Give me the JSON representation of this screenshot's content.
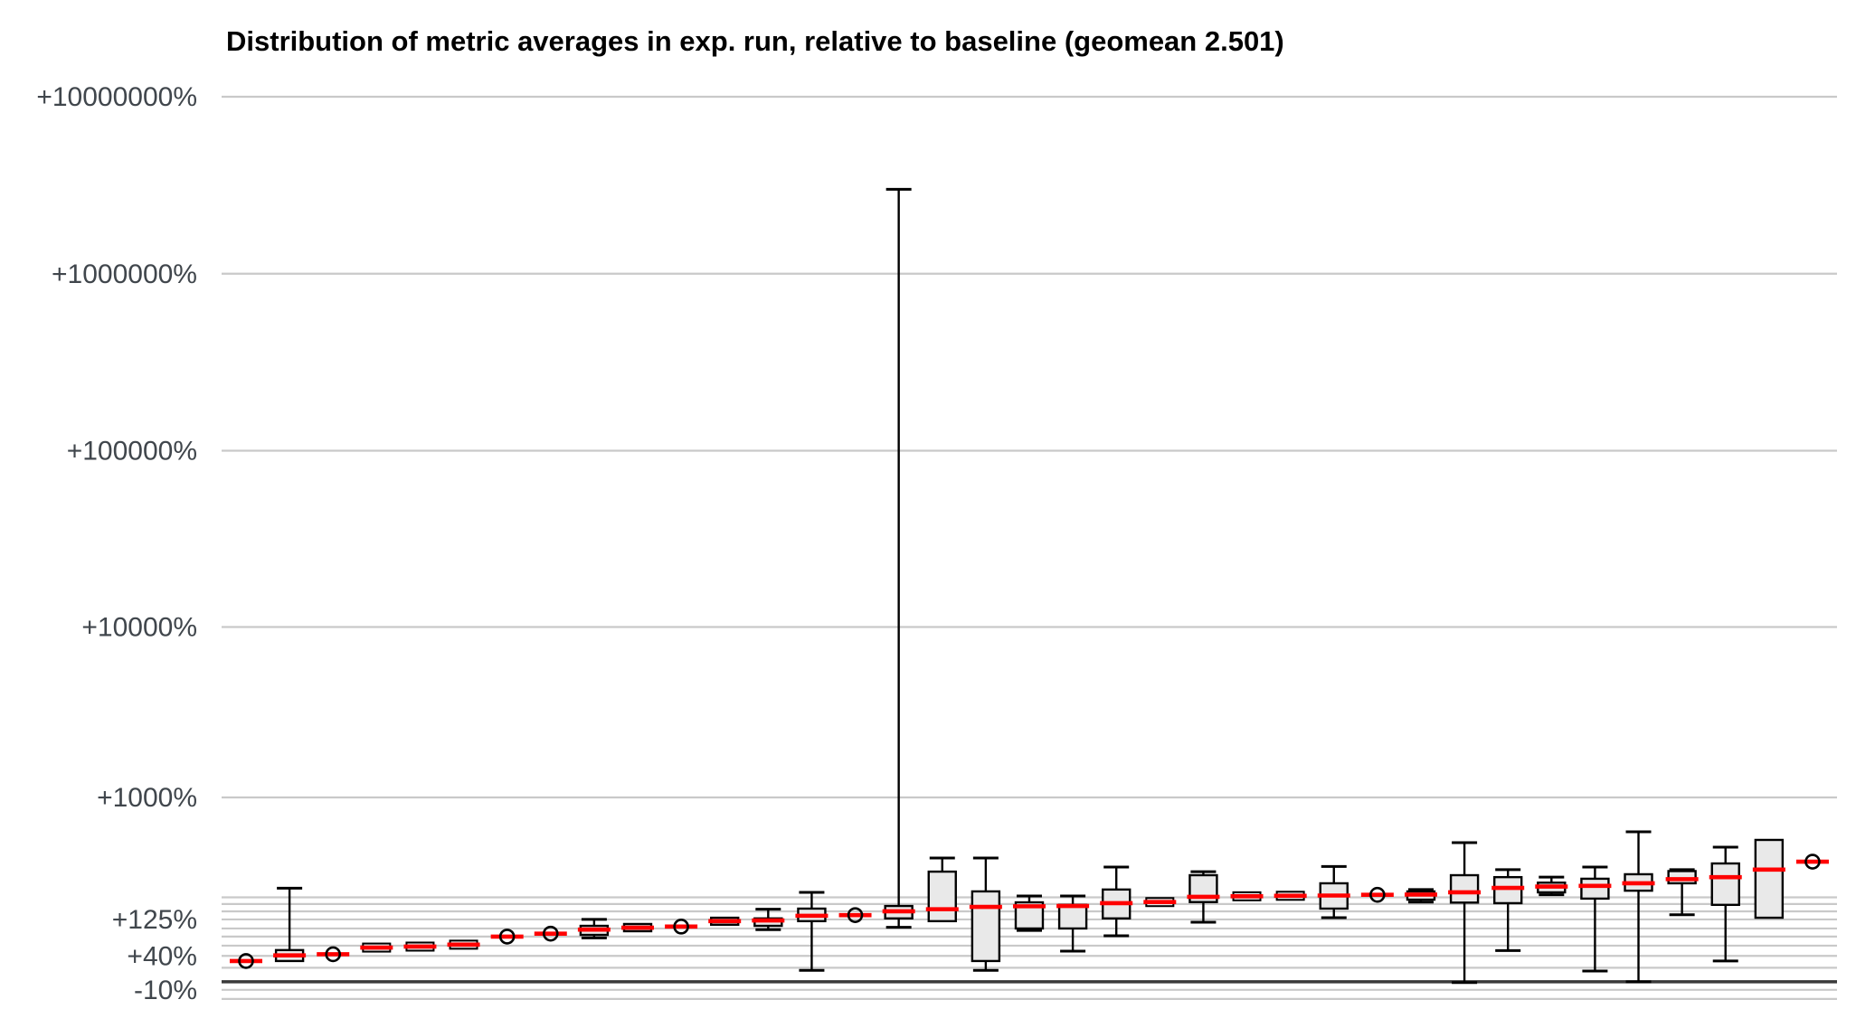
{
  "title": "Distribution of metric averages in exp. run, relative to baseline (geomean 2.501)",
  "colors": {
    "median_red": "#ff0000",
    "box_fill": "#e9e9e9",
    "box_stroke": "#000000",
    "gridline": "#c9c9c9",
    "baseline_line": "#3a3a3a",
    "tick_label": "#40464c",
    "title": "#000000"
  },
  "chart_data": {
    "type": "boxplot",
    "title": "Distribution of metric averages in exp. run, relative to baseline (geomean 2.501)",
    "geomean": 2.501,
    "xlabel": "",
    "ylabel": "",
    "x_tick_labels": [],
    "y_scale": "logarithmic in ratio (1 + pct/100)",
    "y_axis": {
      "tick_labels": [
        "+10000000%",
        "+1000000%",
        "+100000%",
        "+10000%",
        "+1000%",
        "+125%",
        "+40%",
        "-10%"
      ],
      "tick_values_pct": [
        10000000,
        1000000,
        100000,
        10000,
        1000,
        125,
        40,
        -10
      ],
      "gridlines_minor_pct": [
        10000000,
        1000000,
        100000,
        10000,
        1000,
        200,
        175,
        150,
        125,
        100,
        80,
        60,
        40,
        20,
        -10,
        -20
      ],
      "baseline_pct": 0,
      "grid": "on",
      "range_pct": [
        -20,
        10000000
      ]
    },
    "n_boxes": 37,
    "boxes": [
      {
        "kind": "circle",
        "median_pct": 31
      },
      {
        "kind": "box",
        "median_pct": 41,
        "q1_pct": 31,
        "q3_pct": 51,
        "whisker_low_pct": 31,
        "whisker_high_pct": 238
      },
      {
        "kind": "circle",
        "median_pct": 43
      },
      {
        "kind": "dash",
        "median_pct": 56
      },
      {
        "kind": "dash",
        "median_pct": 58
      },
      {
        "kind": "dash",
        "median_pct": 62
      },
      {
        "kind": "circle",
        "median_pct": 80
      },
      {
        "kind": "circle",
        "median_pct": 87
      },
      {
        "kind": "box",
        "median_pct": 97,
        "q1_pct": 84,
        "q3_pct": 107,
        "whisker_low_pct": 77,
        "whisker_high_pct": 125
      },
      {
        "kind": "box",
        "median_pct": 102,
        "q1_pct": 93,
        "q3_pct": 112,
        "whisker_low_pct": 93,
        "whisker_high_pct": 112
      },
      {
        "kind": "circle",
        "median_pct": 105
      },
      {
        "kind": "box",
        "median_pct": 120,
        "q1_pct": 110,
        "q3_pct": 130,
        "whisker_low_pct": 110,
        "whisker_high_pct": 130
      },
      {
        "kind": "box",
        "median_pct": 122,
        "q1_pct": 107,
        "q3_pct": 128,
        "whisker_low_pct": 97,
        "whisker_high_pct": 157
      },
      {
        "kind": "box",
        "median_pct": 136,
        "q1_pct": 120,
        "q3_pct": 159,
        "whisker_low_pct": 16,
        "whisker_high_pct": 220
      },
      {
        "kind": "circle",
        "median_pct": 138
      },
      {
        "kind": "box",
        "median_pct": 150,
        "q1_pct": 128,
        "q3_pct": 168,
        "whisker_low_pct": 103,
        "whisker_high_pct": 3000000
      },
      {
        "kind": "box",
        "median_pct": 157,
        "q1_pct": 120,
        "q3_pct": 319,
        "whisker_low_pct": 120,
        "whisker_high_pct": 400
      },
      {
        "kind": "box",
        "median_pct": 165,
        "q1_pct": 31,
        "q3_pct": 224,
        "whisker_low_pct": 16,
        "whisker_high_pct": 400
      },
      {
        "kind": "box",
        "median_pct": 167,
        "q1_pct": 100,
        "q3_pct": 181,
        "whisker_low_pct": 95,
        "whisker_high_pct": 205
      },
      {
        "kind": "box",
        "median_pct": 168,
        "q1_pct": 100,
        "q3_pct": 172,
        "whisker_low_pct": 49,
        "whisker_high_pct": 205
      },
      {
        "kind": "box",
        "median_pct": 178,
        "q1_pct": 128,
        "q3_pct": 232,
        "whisker_low_pct": 82,
        "whisker_high_pct": 345
      },
      {
        "kind": "dash",
        "median_pct": 182
      },
      {
        "kind": "box",
        "median_pct": 202,
        "q1_pct": 182,
        "q3_pct": 300,
        "whisker_low_pct": 117,
        "whisker_high_pct": 319
      },
      {
        "kind": "dash",
        "median_pct": 204
      },
      {
        "kind": "dash",
        "median_pct": 206
      },
      {
        "kind": "box",
        "median_pct": 207,
        "q1_pct": 159,
        "q3_pct": 260,
        "whisker_low_pct": 130,
        "whisker_high_pct": 348
      },
      {
        "kind": "circle",
        "median_pct": 210
      },
      {
        "kind": "box",
        "median_pct": 211,
        "q1_pct": 191,
        "q3_pct": 224,
        "whisker_low_pct": 182,
        "whisker_high_pct": 232
      },
      {
        "kind": "box",
        "median_pct": 220,
        "q1_pct": 180,
        "q3_pct": 300,
        "whisker_low_pct": -1,
        "whisker_high_pct": 511
      },
      {
        "kind": "box",
        "median_pct": 239,
        "q1_pct": 178,
        "q3_pct": 290,
        "whisker_low_pct": 50,
        "whisker_high_pct": 330
      },
      {
        "kind": "box",
        "median_pct": 245,
        "q1_pct": 220,
        "q3_pct": 263,
        "whisker_low_pct": 210,
        "whisker_high_pct": 290
      },
      {
        "kind": "box",
        "median_pct": 248,
        "q1_pct": 195,
        "q3_pct": 282,
        "whisker_low_pct": 15,
        "whisker_high_pct": 345
      },
      {
        "kind": "box",
        "median_pct": 260,
        "q1_pct": 227,
        "q3_pct": 305,
        "whisker_low_pct": 0,
        "whisker_high_pct": 604
      },
      {
        "kind": "box",
        "median_pct": 280,
        "q1_pct": 260,
        "q3_pct": 322,
        "whisker_low_pct": 139,
        "whisker_high_pct": 330
      },
      {
        "kind": "box",
        "median_pct": 290,
        "q1_pct": 172,
        "q3_pct": 366,
        "whisker_low_pct": 31,
        "whisker_high_pct": 476
      },
      {
        "kind": "box",
        "median_pct": 330,
        "q1_pct": 130,
        "q3_pct": 533,
        "whisker_low_pct": 130,
        "whisker_high_pct": 533
      },
      {
        "kind": "circle",
        "median_pct": 377
      }
    ]
  }
}
